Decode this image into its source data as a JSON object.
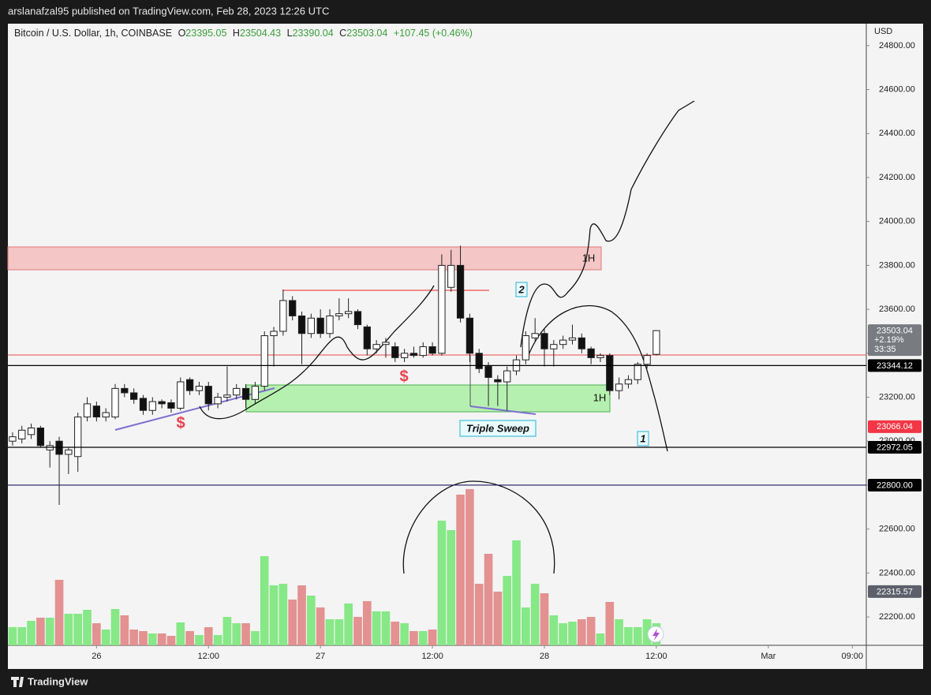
{
  "header": "arslanafzal95 published on TradingView.com, Feb 28, 2023 12:26 UTC",
  "footer": "TradingView",
  "chart_data": {
    "type": "candlestick",
    "legend": {
      "symbol": "Bitcoin / U.S. Dollar, 1h, COINBASE",
      "items": [
        {
          "key": "O",
          "value": "23395.05"
        },
        {
          "key": "H",
          "value": "23504.43"
        },
        {
          "key": "L",
          "value": "23390.04"
        },
        {
          "key": "C",
          "value": "23503.04"
        }
      ],
      "change": "+107.45 (+0.46%)"
    },
    "y_axis_label": "USD",
    "up_color": "#ffffff",
    "down_color": "#111111",
    "volume_up_color": "#86e886",
    "volume_down_color": "#e39191",
    "x": [
      0,
      1,
      2,
      3,
      4,
      5,
      6,
      7,
      8,
      9,
      10,
      11,
      12,
      13,
      14,
      15,
      16,
      17,
      18,
      19,
      20,
      21,
      22,
      23,
      24,
      25,
      26,
      27,
      28,
      29,
      30,
      31,
      32,
      33,
      34,
      35,
      36,
      37,
      38,
      39,
      40,
      41,
      42,
      43,
      44,
      45,
      46,
      47,
      48,
      49,
      50,
      51,
      52,
      53,
      54,
      55,
      56,
      57,
      58,
      59,
      60,
      61,
      62,
      63,
      64,
      65,
      66,
      67,
      68,
      69
    ],
    "open": [
      23000,
      23010,
      23030,
      23060,
      22960,
      23000,
      22940,
      22930,
      23110,
      23160,
      23110,
      23110,
      23240,
      23220,
      23195,
      23140,
      23180,
      23175,
      23150,
      23280,
      23230,
      23250,
      23170,
      23200,
      23210,
      23240,
      23190,
      23250,
      23480,
      23500,
      23640,
      23570,
      23490,
      23560,
      23490,
      23570,
      23580,
      23590,
      23520,
      23420,
      23440,
      23430,
      23380,
      23400,
      23390,
      23430,
      23400,
      23700,
      23800,
      23560,
      23400,
      23340,
      23280,
      23270,
      23320,
      23370,
      23470,
      23490,
      23420,
      23440,
      23460,
      23470,
      23420,
      23380,
      23390,
      23230,
      23260,
      23280,
      23350,
      23395.05
    ],
    "high": [
      23040,
      23070,
      23080,
      23070,
      23000,
      23020,
      22970,
      23130,
      23200,
      23180,
      23150,
      23260,
      23260,
      23240,
      23210,
      23200,
      23190,
      23190,
      23290,
      23290,
      23270,
      23270,
      23220,
      23340,
      23260,
      23260,
      23270,
      23500,
      23520,
      23690,
      23660,
      23590,
      23580,
      23600,
      23600,
      23650,
      23650,
      23600,
      23530,
      23460,
      23470,
      23450,
      23420,
      23430,
      23450,
      23450,
      23850,
      23870,
      23890,
      23580,
      23420,
      23360,
      23300,
      23340,
      23390,
      23500,
      23560,
      23510,
      23460,
      23480,
      23530,
      23490,
      23430,
      23400,
      23400,
      23290,
      23300,
      23360,
      23400,
      23504.43
    ],
    "low": [
      22980,
      22990,
      23010,
      22970,
      22880,
      22710,
      22850,
      22860,
      23090,
      23090,
      23090,
      23100,
      23200,
      23170,
      23120,
      23120,
      23150,
      23130,
      23140,
      23210,
      23210,
      23140,
      23150,
      23180,
      23190,
      23150,
      23170,
      23230,
      23340,
      23480,
      23550,
      23350,
      23470,
      23470,
      23470,
      23550,
      23560,
      23510,
      23390,
      23400,
      23380,
      23360,
      23360,
      23380,
      23380,
      23390,
      23390,
      23680,
      23540,
      23360,
      23310,
      23160,
      23160,
      23140,
      23300,
      23350,
      23450,
      23340,
      23340,
      23420,
      23440,
      23400,
      23350,
      23360,
      23210,
      23190,
      23240,
      23260,
      23330,
      23390.04
    ],
    "close": [
      23020,
      23050,
      23060,
      22980,
      22980,
      22940,
      22960,
      23110,
      23170,
      23110,
      23130,
      23240,
      23220,
      23190,
      23140,
      23180,
      23170,
      23150,
      23270,
      23230,
      23250,
      23170,
      23200,
      23210,
      23240,
      23190,
      23250,
      23480,
      23500,
      23640,
      23570,
      23490,
      23560,
      23490,
      23570,
      23580,
      23590,
      23530,
      23420,
      23440,
      23450,
      23380,
      23400,
      23390,
      23430,
      23400,
      23800,
      23800,
      23560,
      23400,
      23330,
      23290,
      23270,
      23320,
      23370,
      23480,
      23490,
      23420,
      23440,
      23460,
      23470,
      23420,
      23380,
      23390,
      23230,
      23260,
      23280,
      23350,
      23390,
      23503.04
    ],
    "volume": [
      23,
      23,
      31,
      35,
      35,
      83,
      40,
      40,
      45,
      28,
      20,
      46,
      38,
      20,
      18,
      15,
      15,
      12,
      29,
      18,
      13,
      23,
      13,
      36,
      28,
      28,
      18,
      113,
      76,
      78,
      58,
      76,
      63,
      48,
      33,
      33,
      53,
      36,
      56,
      43,
      43,
      30,
      28,
      18,
      18,
      20,
      158,
      146,
      191,
      198,
      78,
      116,
      68,
      88,
      133,
      48,
      78,
      66,
      38,
      28,
      30,
      33,
      36,
      15,
      55,
      33,
      23,
      23,
      33,
      28
    ],
    "xlim": [
      -0.5,
      91.5
    ],
    "xticks": [
      {
        "value": 9,
        "label": "26"
      },
      {
        "value": 21,
        "label": "12:00"
      },
      {
        "value": 33,
        "label": "27"
      },
      {
        "value": 45,
        "label": "12:00"
      },
      {
        "value": 57,
        "label": "28"
      },
      {
        "value": 69,
        "label": "12:00"
      },
      {
        "value": 81,
        "label": "Mar"
      },
      {
        "value": 90,
        "label": "09:00"
      }
    ],
    "ylim": [
      22071,
      24900
    ],
    "yticks": [
      {
        "value": 24800,
        "label": "24800.00"
      },
      {
        "value": 24600,
        "label": "24600.00"
      },
      {
        "value": 24400,
        "label": "24400.00"
      },
      {
        "value": 24200,
        "label": "24200.00"
      },
      {
        "value": 24000,
        "label": "24000.00"
      },
      {
        "value": 23800,
        "label": "23800.00"
      },
      {
        "value": 23600,
        "label": "23600.00"
      },
      {
        "value": 23400,
        "label": "23400.00"
      },
      {
        "value": 23200,
        "label": "23200.00"
      },
      {
        "value": 23000,
        "label": "23000.00"
      },
      {
        "value": 22800,
        "label": "22800.00"
      },
      {
        "value": 22600,
        "label": "22600.00"
      },
      {
        "value": 22400,
        "label": "22400.00"
      },
      {
        "value": 22200,
        "label": "22200.00"
      }
    ],
    "price_tags": [
      {
        "value": 23503.04,
        "label": "23503.04",
        "extra": [
          "+2.19%",
          "33:35"
        ],
        "color": "#787b80",
        "line": false
      },
      {
        "value": 23344.12,
        "label": "23344.12",
        "color": "#000000",
        "line": true
      },
      {
        "value": 23066.04,
        "label": "23066.04",
        "color": "#f23645",
        "line": false
      },
      {
        "value": 22972.05,
        "label": "22972.05",
        "color": "#000000",
        "line": true
      },
      {
        "value": 22800,
        "label": "22800.00",
        "color": "#000000",
        "line": true,
        "line_color": "#1a1a5e"
      },
      {
        "value": 22315.57,
        "label": "22315.57",
        "color": "#5d606b",
        "line": false
      }
    ],
    "annotations": [
      "1H",
      "1H",
      "2",
      "Triple Sweep",
      "1",
      "$",
      "$"
    ]
  }
}
